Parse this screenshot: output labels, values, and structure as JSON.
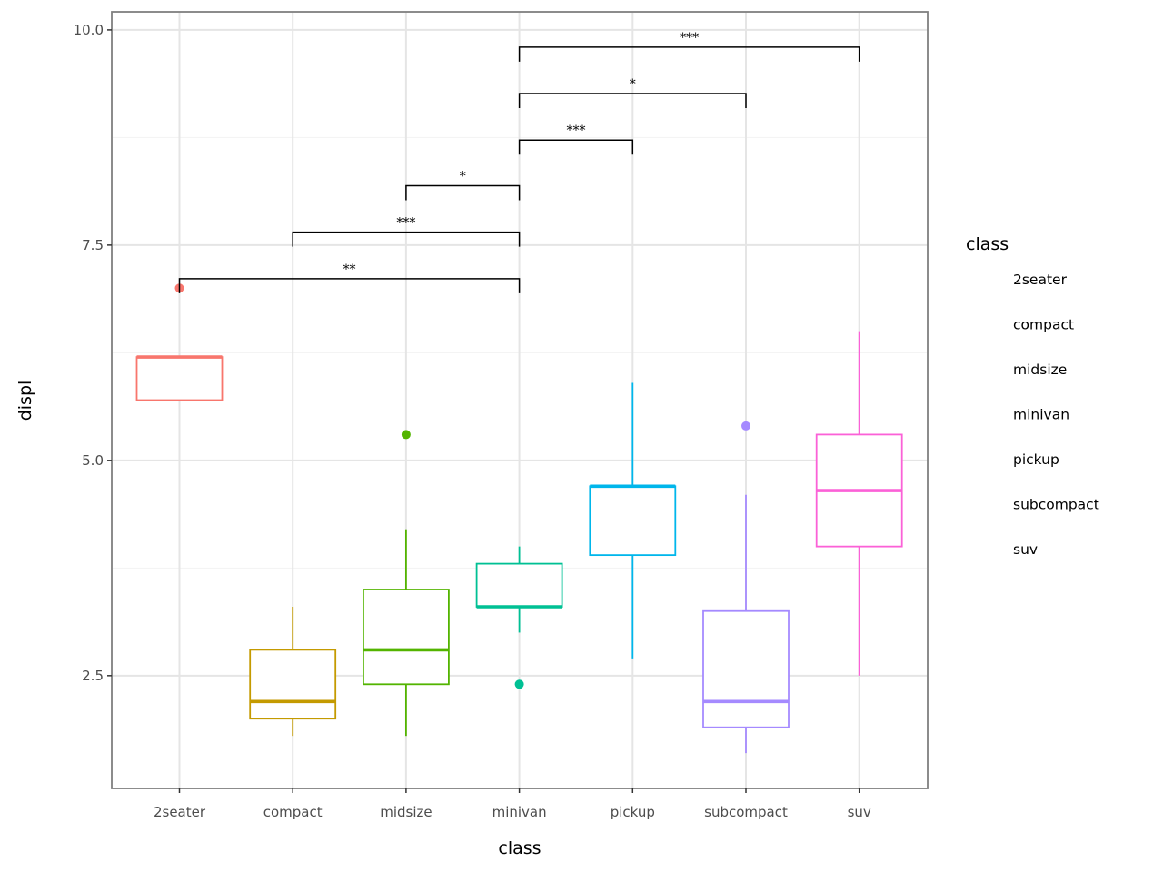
{
  "chart_data": {
    "type": "box",
    "xlabel": "class",
    "ylabel": "displ",
    "ylim": [
      1.19,
      10.21
    ],
    "yticks": [
      "2.5",
      "5.0",
      "7.5",
      "10.0"
    ],
    "ytick_values": [
      2.5,
      5.0,
      7.5,
      10.0
    ],
    "grid": true,
    "categories": [
      "2seater",
      "compact",
      "midsize",
      "minivan",
      "pickup",
      "subcompact",
      "suv"
    ],
    "colors": [
      "#F8766D",
      "#C49A00",
      "#53B400",
      "#00C094",
      "#00B6EB",
      "#A58AFF",
      "#FB61D7"
    ],
    "boxes": [
      {
        "lower": 5.7,
        "q1": 5.7,
        "median": 6.2,
        "q3": 6.2,
        "upper": 6.2,
        "outliers": [
          7.0
        ]
      },
      {
        "lower": 1.8,
        "q1": 2.0,
        "median": 2.2,
        "q3": 2.8,
        "upper": 3.3,
        "outliers": []
      },
      {
        "lower": 1.8,
        "q1": 2.4,
        "median": 2.8,
        "q3": 3.5,
        "upper": 4.2,
        "outliers": [
          5.3
        ]
      },
      {
        "lower": 3.0,
        "q1": 3.3,
        "median": 3.3,
        "q3": 3.8,
        "upper": 4.0,
        "outliers": [
          2.4
        ]
      },
      {
        "lower": 2.7,
        "q1": 3.9,
        "median": 4.7,
        "q3": 4.7,
        "upper": 5.9,
        "outliers": []
      },
      {
        "lower": 1.6,
        "q1": 1.9,
        "median": 2.2,
        "q3": 3.25,
        "upper": 4.6,
        "outliers": [
          5.4
        ]
      },
      {
        "lower": 2.5,
        "q1": 4.0,
        "median": 4.65,
        "q3": 5.3,
        "upper": 6.5,
        "outliers": []
      }
    ],
    "comparisons": [
      {
        "from": "2seater",
        "to": "minivan",
        "y": 7.11,
        "label": "**"
      },
      {
        "from": "compact",
        "to": "minivan",
        "y": 7.65,
        "label": "***"
      },
      {
        "from": "midsize",
        "to": "minivan",
        "y": 8.19,
        "label": "*"
      },
      {
        "from": "minivan",
        "to": "pickup",
        "y": 8.72,
        "label": "***"
      },
      {
        "from": "minivan",
        "to": "subcompact",
        "y": 9.26,
        "label": "*"
      },
      {
        "from": "minivan",
        "to": "suv",
        "y": 9.8,
        "label": "***"
      }
    ],
    "legend": {
      "title": "class",
      "position": "right",
      "entries": [
        "2seater",
        "compact",
        "midsize",
        "minivan",
        "pickup",
        "subcompact",
        "suv"
      ]
    }
  }
}
